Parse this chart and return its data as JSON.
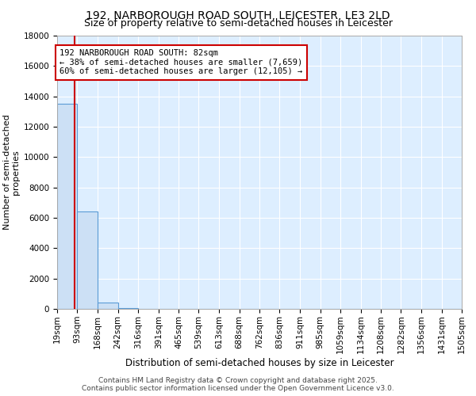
{
  "title": "192, NARBOROUGH ROAD SOUTH, LEICESTER, LE3 2LD",
  "subtitle": "Size of property relative to semi-detached houses in Leicester",
  "xlabel": "Distribution of semi-detached houses by size in Leicester",
  "ylabel": "Number of semi-detached\nproperties",
  "bin_labels": [
    "19sqm",
    "93sqm",
    "168sqm",
    "242sqm",
    "316sqm",
    "391sqm",
    "465sqm",
    "539sqm",
    "613sqm",
    "688sqm",
    "762sqm",
    "836sqm",
    "911sqm",
    "985sqm",
    "1059sqm",
    "1134sqm",
    "1208sqm",
    "1282sqm",
    "1356sqm",
    "1431sqm",
    "1505sqm"
  ],
  "bin_edges": [
    19,
    93,
    168,
    242,
    316,
    391,
    465,
    539,
    613,
    688,
    762,
    836,
    911,
    985,
    1059,
    1134,
    1208,
    1282,
    1356,
    1431,
    1505
  ],
  "bar_heights": [
    13500,
    6400,
    400,
    40,
    0,
    0,
    0,
    0,
    0,
    0,
    0,
    0,
    0,
    0,
    0,
    0,
    0,
    0,
    0,
    0
  ],
  "bar_color": "#cce0f5",
  "bar_edge_color": "#5b9bd5",
  "property_size": 82,
  "red_line_color": "#cc0000",
  "annotation_text": "192 NARBOROUGH ROAD SOUTH: 82sqm\n← 38% of semi-detached houses are smaller (7,659)\n60% of semi-detached houses are larger (12,105) →",
  "annotation_box_color": "#ffffff",
  "annotation_box_edge": "#cc0000",
  "ylim": [
    0,
    18000
  ],
  "yticks": [
    0,
    2000,
    4000,
    6000,
    8000,
    10000,
    12000,
    14000,
    16000,
    18000
  ],
  "grid_color": "#c8d8e8",
  "background_color": "#ddeeff",
  "footer_text": "Contains HM Land Registry data © Crown copyright and database right 2025.\nContains public sector information licensed under the Open Government Licence v3.0.",
  "title_fontsize": 10,
  "subtitle_fontsize": 9,
  "tick_fontsize": 7.5,
  "ylabel_fontsize": 8,
  "xlabel_fontsize": 8.5,
  "annotation_fontsize": 7.5
}
